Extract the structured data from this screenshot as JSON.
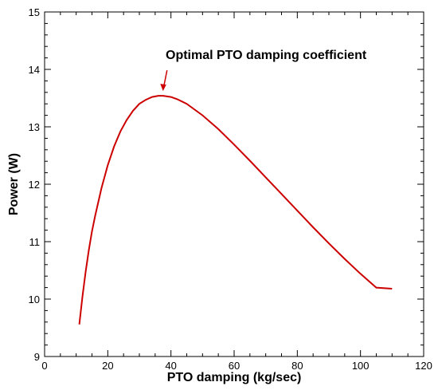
{
  "chart_data": {
    "type": "line",
    "xlabel": "PTO damping (kg/sec)",
    "ylabel": "Power (W)",
    "xlim": [
      0,
      120
    ],
    "ylim": [
      9,
      15
    ],
    "xticks": [
      0,
      20,
      40,
      60,
      80,
      100,
      120
    ],
    "yticks": [
      9,
      10,
      11,
      12,
      13,
      14,
      15
    ],
    "grid": false,
    "series": [
      {
        "color": "#cc0000",
        "x": [
          11,
          12,
          13,
          14,
          15,
          16,
          18,
          20,
          22,
          24,
          26,
          28,
          30,
          32,
          34,
          36,
          37.5,
          40,
          42,
          45,
          50,
          55,
          60,
          65,
          70,
          75,
          80,
          85,
          90,
          95,
          100,
          105,
          110
        ],
        "y": [
          9.56,
          10.05,
          10.48,
          10.85,
          11.18,
          11.45,
          11.93,
          12.33,
          12.66,
          12.92,
          13.12,
          13.28,
          13.4,
          13.47,
          13.52,
          13.54,
          13.54,
          13.52,
          13.48,
          13.4,
          13.2,
          12.96,
          12.69,
          12.41,
          12.12,
          11.83,
          11.54,
          11.25,
          10.97,
          10.7,
          10.44,
          10.2,
          10.18
        ]
      }
    ],
    "annotation": {
      "text": "Optimal PTO damping coefficient",
      "x": 37.5,
      "y": 13.54
    }
  }
}
